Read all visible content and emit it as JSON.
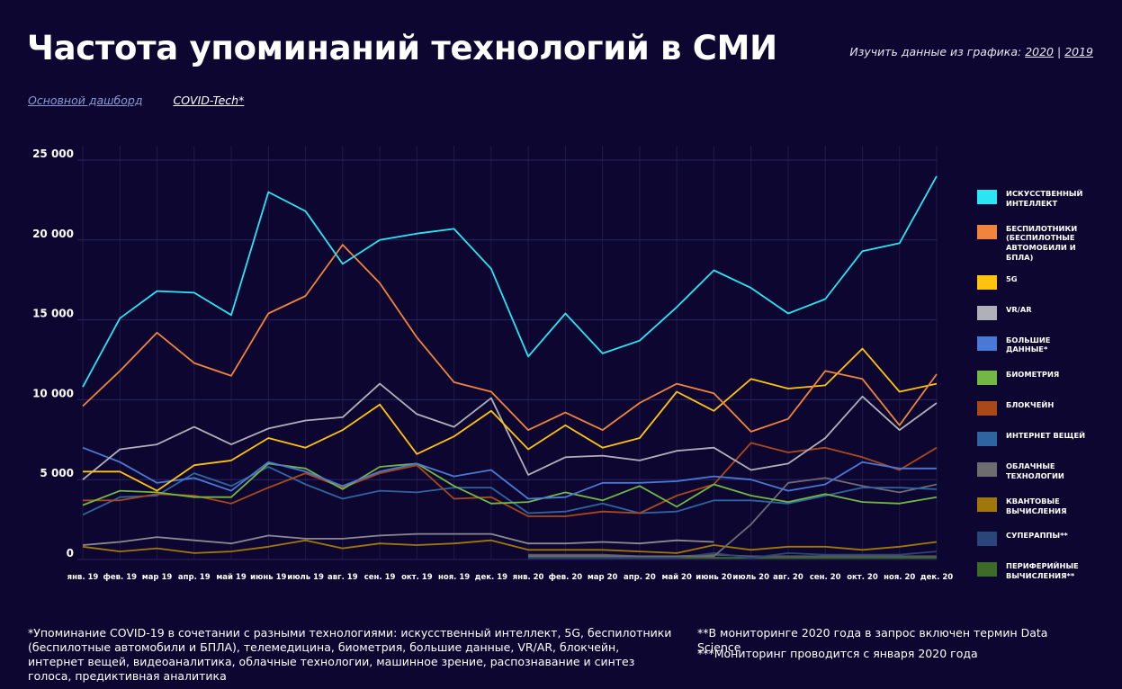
{
  "header": {
    "title": "Частота упоминаний технологий в СМИ",
    "explore_prefix": "Изучить данные из графика:",
    "explore_separator": "|",
    "explore_links": [
      "2020",
      "2019"
    ]
  },
  "nav": {
    "main_dashboard": "Основной дашборд",
    "covid_tech": "COVID-Tech*"
  },
  "footnotes": {
    "left": "*Упоминание COVID-19 в сочетании с разными технологиями: искусственный интеллект, 5G, беспилотники (беспилотные автомобили и БПЛА), телемедицина, биометрия, большие данные, VR/AR, блокчейн, интернет вещей, видеоаналитика, облачные технологии, машинное зрение, распознавание и синтез голоса, предиктивная аналитика",
    "right1": "**В мониторинге 2020 года в запрос включен термин Data Science",
    "right2": "***Мониторинг проводится с января 2020 года"
  },
  "chart_data": {
    "type": "line",
    "categories": [
      "янв. 19",
      "фев. 19",
      "мар 19",
      "апр. 19",
      "май 19",
      "июнь 19",
      "июль 19",
      "авг. 19",
      "сен. 19",
      "окт. 19",
      "ноя. 19",
      "дек. 19",
      "янв. 20",
      "фев. 20",
      "мар 20",
      "апр. 20",
      "май 20",
      "июнь 20",
      "июль 20",
      "авг. 20",
      "сен. 20",
      "окт. 20",
      "ноя. 20",
      "дек. 20"
    ],
    "ylim": [
      0,
      25000
    ],
    "yticks": [
      0,
      5000,
      10000,
      15000,
      20000,
      25000
    ],
    "ytick_labels": [
      "0",
      "5 000",
      "10 000",
      "15 000",
      "20 000",
      "25 000"
    ],
    "series": [
      {
        "name": "ИСКУССТВЕННЫЙ ИНТЕЛЛЕКТ",
        "color": "#29e6f2",
        "values": [
          10800,
          15100,
          16800,
          16700,
          15300,
          23000,
          21800,
          18500,
          20000,
          20400,
          20700,
          18200,
          12700,
          15400,
          12900,
          13700,
          15800,
          18100,
          17000,
          15400,
          16300,
          19300,
          19800,
          24000
        ]
      },
      {
        "name": "БЕСПИЛОТНИКИ (БЕСПИЛОТНЫЕ АВТОМОБИЛИ И БПЛА)",
        "color": "#f0843c",
        "values": [
          9600,
          11800,
          14200,
          12300,
          11500,
          15400,
          16500,
          19700,
          17300,
          13900,
          11100,
          10500,
          8100,
          9200,
          8100,
          9800,
          11000,
          10400,
          8000,
          8800,
          11800,
          11300,
          8400,
          11600
        ]
      },
      {
        "name": "5G",
        "color": "#ffc20e",
        "values": [
          5500,
          5500,
          4300,
          5900,
          6200,
          7600,
          7000,
          8100,
          9700,
          6600,
          7700,
          9300,
          6900,
          8400,
          7000,
          7600,
          10500,
          9300,
          11300,
          10700,
          10900,
          13200,
          10500,
          11000
        ]
      },
      {
        "name": "VR/AR",
        "color": "#b0b0b8",
        "values": [
          5000,
          6900,
          7200,
          8300,
          7200,
          8200,
          8700,
          8900,
          11000,
          9100,
          8300,
          10100,
          5300,
          6400,
          6500,
          6200,
          6800,
          7000,
          5600,
          6000,
          7600,
          10200,
          8100,
          9800
        ]
      },
      {
        "name": "БОЛЬШИЕ ДАННЫЕ*",
        "color": "#4a78d6",
        "values": [
          7000,
          6100,
          4800,
          5100,
          4300,
          6100,
          5500,
          4600,
          5500,
          6000,
          5200,
          5600,
          3800,
          3900,
          4800,
          4800,
          4900,
          5200,
          5000,
          4300,
          4700,
          6100,
          5700,
          5700
        ]
      },
      {
        "name": "БИОМЕТРИЯ",
        "color": "#72b843",
        "values": [
          3400,
          4300,
          4200,
          3900,
          3900,
          6000,
          5700,
          4400,
          5800,
          6000,
          4600,
          3500,
          3600,
          4200,
          3700,
          4600,
          3300,
          4700,
          4000,
          3600,
          4100,
          3600,
          3500,
          3900
        ]
      },
      {
        "name": "БЛОКЧЕЙН",
        "color": "#a9491a",
        "values": [
          3700,
          3700,
          4100,
          4000,
          3500,
          4500,
          5400,
          4500,
          5400,
          5900,
          3800,
          3900,
          2700,
          2700,
          3000,
          2900,
          4000,
          4700,
          7300,
          6700,
          7000,
          6400,
          5600,
          7000
        ]
      },
      {
        "name": "ИНТЕРНЕТ ВЕЩЕЙ",
        "color": "#2e64a0",
        "values": [
          2800,
          3900,
          4000,
          5400,
          4600,
          5800,
          4700,
          3800,
          4300,
          4200,
          4500,
          4500,
          2900,
          3000,
          3500,
          2900,
          3000,
          3700,
          3700,
          3500,
          4000,
          4500,
          4500,
          4400
        ]
      },
      {
        "name": "ОБЛАЧНЫЕ ТЕХНОЛОГИИ",
        "color": "#6d6d70",
        "values": [
          null,
          null,
          null,
          null,
          null,
          null,
          null,
          null,
          null,
          null,
          null,
          null,
          200,
          200,
          200,
          200,
          200,
          200,
          2200,
          4800,
          5100,
          4600,
          4200,
          4700
        ]
      },
      {
        "name": "КВАНТОВЫЕ ВЫЧИСЛЕНИЯ",
        "color": "#a0770a",
        "values": [
          800,
          500,
          700,
          400,
          500,
          800,
          1200,
          700,
          1000,
          900,
          1000,
          1200,
          600,
          600,
          600,
          500,
          400,
          900,
          600,
          800,
          800,
          600,
          800,
          1100
        ]
      },
      {
        "name": "СУПЕРАППЫ**",
        "color": "#29457a",
        "values": [
          null,
          null,
          null,
          null,
          null,
          null,
          null,
          null,
          null,
          null,
          null,
          null,
          100,
          100,
          100,
          100,
          100,
          400,
          100,
          400,
          300,
          300,
          300,
          500
        ]
      },
      {
        "name": "ПЕРИФЕРИЙНЫЕ ВЫЧИСЛЕНИЯ**",
        "color": "#3d6b28",
        "values": [
          null,
          null,
          null,
          null,
          null,
          null,
          null,
          null,
          null,
          null,
          null,
          null,
          100,
          100,
          100,
          100,
          100,
          100,
          100,
          100,
          100,
          100,
          100,
          100
        ]
      }
    ],
    "extra_series": [
      {
        "color": "#8a8a90",
        "values": [
          900,
          1100,
          1400,
          1200,
          1000,
          1500,
          1300,
          1300,
          1500,
          1600,
          1600,
          1600,
          1000,
          1000,
          1100,
          1000,
          1200,
          1100,
          null,
          null,
          null,
          null,
          null,
          null
        ]
      },
      {
        "color": "#5a5a5e",
        "values": [
          null,
          null,
          null,
          null,
          null,
          null,
          null,
          null,
          null,
          null,
          null,
          null,
          300,
          300,
          300,
          200,
          200,
          300,
          200,
          200,
          200,
          200,
          200,
          200
        ]
      }
    ],
    "grid": true,
    "legend_position": "right"
  }
}
